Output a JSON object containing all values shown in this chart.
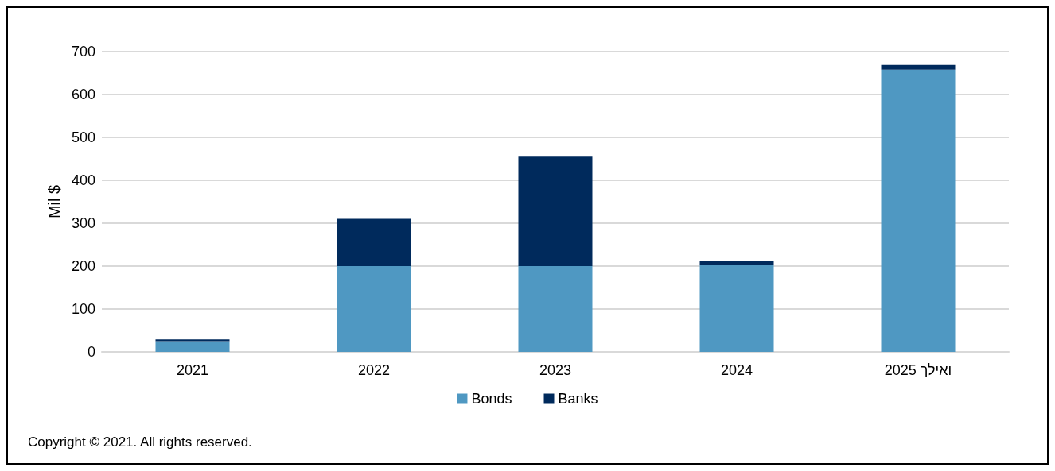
{
  "chart_data": {
    "type": "bar",
    "stacked": true,
    "ylabel": "Mil $",
    "categories": [
      "2021",
      "2022",
      "2023",
      "2024",
      "2025 ואילך"
    ],
    "series": [
      {
        "name": "Bonds",
        "color": "#4f98c2",
        "values": [
          25,
          200,
          200,
          202,
          658
        ]
      },
      {
        "name": "Banks",
        "color": "#002a5c",
        "values": [
          4,
          110,
          255,
          11,
          11
        ]
      }
    ],
    "ylim": [
      0,
      700
    ],
    "yticks": [
      0,
      100,
      200,
      300,
      400,
      500,
      600,
      700
    ],
    "grid": "y",
    "legend": "bottom",
    "annotations": [
      "Copyright © 2021. All rights reserved."
    ]
  }
}
